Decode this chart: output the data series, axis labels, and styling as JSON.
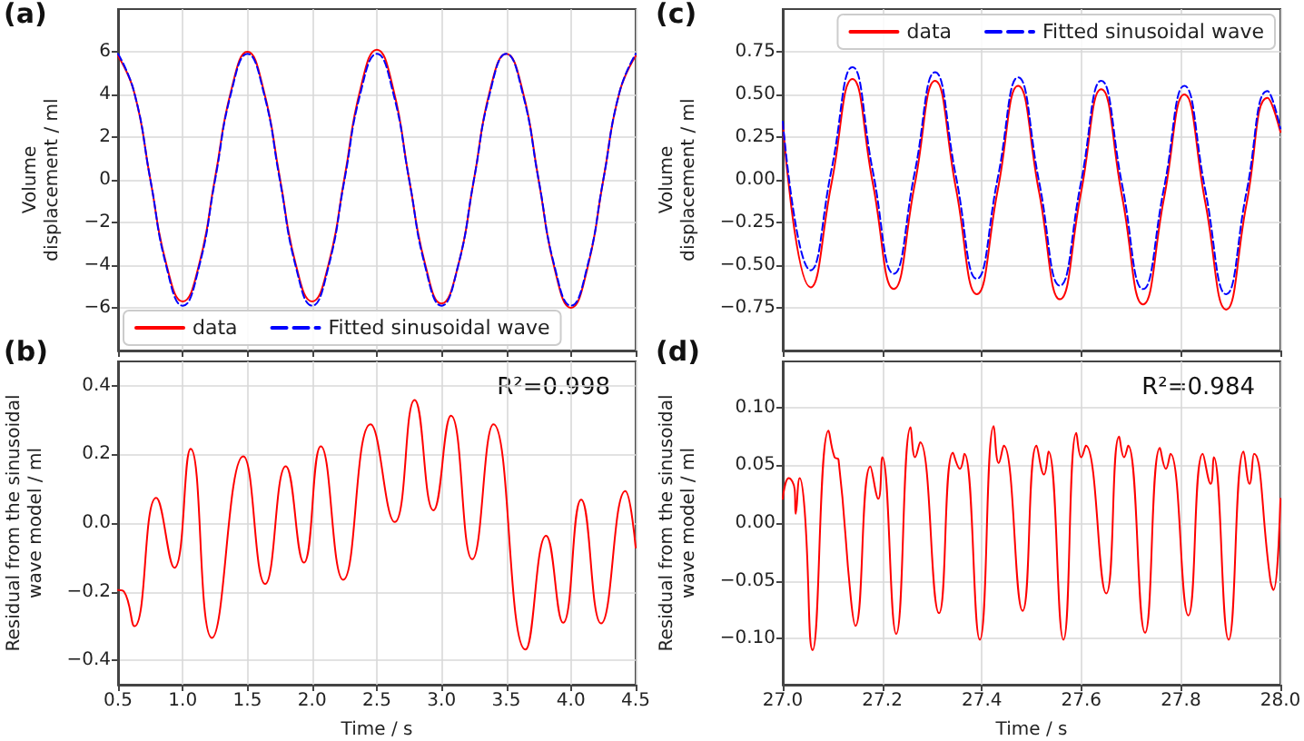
{
  "chart_data": [
    {
      "type": "line",
      "title": "(a)",
      "ylabel": "Volume\ndisplacement / ml",
      "xlim": [
        0.5,
        4.5
      ],
      "ylim": [
        -8,
        8
      ],
      "xticks": [
        0.5,
        1,
        1.5,
        2,
        2.5,
        3,
        3.5,
        4,
        4.5
      ],
      "yticks": [
        {
          "value": -6,
          "label": "−6"
        },
        {
          "value": -4,
          "label": "−4"
        },
        {
          "value": -2,
          "label": "−2"
        },
        0,
        2,
        4,
        6
      ],
      "tick_labels": "y",
      "grid": true,
      "legend": "bottom left",
      "marker": "none",
      "series": [
        {
          "name": "data",
          "color": "#ff0000",
          "line_style": "solid",
          "x": [
            0.5,
            0.625,
            0.75,
            0.875,
            1,
            1.125,
            1.25,
            1.375,
            1.5,
            1.625,
            1.75,
            1.875,
            2,
            2.125,
            2.25,
            2.375,
            2.5,
            2.625,
            2.75,
            2.875,
            3,
            3.125,
            3.25,
            3.375,
            3.5,
            3.625,
            3.75,
            3.875,
            4,
            4.125,
            4.25,
            4.375,
            4.5
          ],
          "values": [
            5.8,
            4.1,
            0,
            -4,
            -5.7,
            -4,
            0.1,
            4.2,
            6,
            4.2,
            0.1,
            -4,
            -5.7,
            -4,
            0.1,
            4.3,
            6.1,
            4.3,
            0,
            -4,
            -5.8,
            -4.1,
            0,
            4.2,
            5.9,
            4.2,
            0,
            -4.2,
            -6,
            -4.2,
            0,
            4.1,
            5.8
          ]
        },
        {
          "name": "Fitted sinusoidal wave",
          "color": "#0000ff",
          "line_style": "dashed",
          "x": [
            0.5,
            0.625,
            0.75,
            0.875,
            1,
            1.125,
            1.25,
            1.375,
            1.5,
            1.625,
            1.75,
            1.875,
            2,
            2.125,
            2.25,
            2.375,
            2.5,
            2.625,
            2.75,
            2.875,
            3,
            3.125,
            3.25,
            3.375,
            3.5,
            3.625,
            3.75,
            3.875,
            4,
            4.125,
            4.25,
            4.375,
            4.5
          ],
          "values": [
            5.9,
            4.1,
            0,
            -4.1,
            -5.9,
            -4.1,
            0,
            4.1,
            5.9,
            4.1,
            0,
            -4.1,
            -5.9,
            -4.1,
            0,
            4.1,
            5.9,
            4.1,
            0,
            -4.1,
            -5.9,
            -4.1,
            0,
            4.1,
            5.9,
            4.1,
            0,
            -4.1,
            -5.9,
            -4.1,
            0,
            4.1,
            5.9
          ]
        }
      ]
    },
    {
      "type": "line",
      "title": "(b)",
      "xlabel": "Time / s",
      "ylabel": "Residual from the sinusoidal\nwave model / ml",
      "xlim": [
        0.5,
        4.5
      ],
      "ylim": [
        -0.47,
        0.47
      ],
      "xticks": [
        0.5,
        {
          "value": 1,
          "label": "1.0"
        },
        1.5,
        {
          "value": 2,
          "label": "2.0"
        },
        2.5,
        {
          "value": 3,
          "label": "3.0"
        },
        3.5,
        {
          "value": 4,
          "label": "4.0"
        },
        4.5
      ],
      "yticks": [
        {
          "value": -0.4,
          "label": "−0.4"
        },
        {
          "value": -0.2,
          "label": "−0.2"
        },
        {
          "value": 0,
          "label": "0.0"
        },
        0.2,
        0.4
      ],
      "grid": true,
      "marker": "none",
      "annotations": [
        "R²=0.998"
      ],
      "series": [
        {
          "color": "#ff0000",
          "line_style": "solid",
          "x": [
            0.5,
            0.547,
            0.626,
            0.795,
            0.935,
            1.061,
            1.225,
            1.468,
            1.637,
            1.796,
            1.936,
            2.067,
            2.24,
            2.451,
            2.638,
            2.792,
            2.937,
            3.073,
            3.237,
            3.401,
            3.649,
            3.808,
            3.939,
            4.079,
            4.233,
            4.42,
            4.5
          ],
          "values": [
            -0.195,
            -0.2,
            -0.3,
            0.073,
            -0.13,
            0.216,
            -0.334,
            0.194,
            -0.177,
            0.165,
            -0.115,
            0.223,
            -0.165,
            0.287,
            0.003,
            0.358,
            0.037,
            0.312,
            -0.105,
            0.287,
            -0.368,
            -0.037,
            -0.29,
            0.068,
            -0.292,
            0.093,
            -0.071
          ]
        }
      ]
    },
    {
      "type": "line",
      "title": "(c)",
      "ylabel": "Volume\ndisplacement / ml",
      "xlim": [
        27,
        28
      ],
      "ylim": [
        -1,
        1
      ],
      "xticks": [
        27,
        27.2,
        27.4,
        27.6,
        27.8,
        28
      ],
      "yticks": [
        {
          "value": -0.75,
          "label": "−0.75"
        },
        {
          "value": -0.5,
          "label": "−0.50"
        },
        {
          "value": -0.25,
          "label": "−0.25"
        },
        {
          "value": 0,
          "label": "0.00"
        },
        0.25,
        {
          "value": 0.5,
          "label": "0.50"
        },
        0.75
      ],
      "tick_labels": "y",
      "grid": true,
      "legend": "top right",
      "marker": "none",
      "series": [
        {
          "name": "data",
          "color": "#ff0000",
          "line_style": "solid",
          "x": [
            27,
            27.056,
            27.098,
            27.14,
            27.181,
            27.223,
            27.265,
            27.306,
            27.348,
            27.39,
            27.432,
            27.473,
            27.515,
            27.557,
            27.599,
            27.64,
            27.682,
            27.724,
            27.766,
            27.807,
            27.849,
            27.891,
            27.932,
            27.974,
            28
          ],
          "values": [
            0.33,
            -0.63,
            -0.02,
            0.59,
            -0.02,
            -0.64,
            -0.03,
            0.58,
            -0.05,
            -0.67,
            -0.06,
            0.55,
            -0.07,
            -0.7,
            -0.08,
            0.53,
            -0.1,
            -0.73,
            -0.11,
            0.5,
            -0.13,
            -0.76,
            -0.14,
            0.48,
            0.28
          ]
        },
        {
          "name": "Fitted sinusoidal wave",
          "color": "#0000ff",
          "line_style": "dashed",
          "x": [
            27,
            27.056,
            27.098,
            27.14,
            27.181,
            27.223,
            27.265,
            27.306,
            27.348,
            27.39,
            27.432,
            27.473,
            27.515,
            27.557,
            27.599,
            27.64,
            27.682,
            27.724,
            27.766,
            27.807,
            27.849,
            27.891,
            27.932,
            27.974,
            28
          ],
          "values": [
            0.34,
            -0.53,
            0.06,
            0.66,
            0.05,
            -0.55,
            0.04,
            0.63,
            0.02,
            -0.58,
            0.01,
            0.6,
            -0.01,
            -0.62,
            -0.02,
            0.58,
            -0.03,
            -0.64,
            -0.05,
            0.55,
            -0.06,
            -0.67,
            -0.07,
            0.52,
            0.3
          ]
        }
      ]
    },
    {
      "type": "line",
      "title": "(d)",
      "xlabel": "Time / s",
      "ylabel": "Residual from the sinusoidal\nwave model / ml",
      "xlim": [
        27,
        28
      ],
      "ylim": [
        -0.14,
        0.14
      ],
      "xticks": [
        {
          "value": 27,
          "label": "27.0"
        },
        27.2,
        27.4,
        27.6,
        27.8,
        {
          "value": 28,
          "label": "28.0"
        }
      ],
      "yticks": [
        {
          "value": -0.1,
          "label": "−0.10"
        },
        {
          "value": -0.05,
          "label": "−0.05"
        },
        {
          "value": 0,
          "label": "0.00"
        },
        0.05,
        {
          "value": 0.1,
          "label": "0.10"
        }
      ],
      "grid": true,
      "marker": "none",
      "annotations": [
        "R²=0.984"
      ],
      "series": [
        {
          "color": "#ff0000",
          "line_style": "solid",
          "x": [
            27,
            27.012,
            27.024,
            27.026,
            27.034,
            27.044,
            27.06,
            27.092,
            27.104,
            27.112,
            27.137,
            27.146,
            27.176,
            27.192,
            27.2,
            27.228,
            27.257,
            27.266,
            27.276,
            27.314,
            27.342,
            27.356,
            27.365,
            27.396,
            27.424,
            27.434,
            27.444,
            27.482,
            27.51,
            27.525,
            27.534,
            27.564,
            27.59,
            27.6,
            27.609,
            27.65,
            27.676,
            27.686,
            27.694,
            27.728,
            27.758,
            27.77,
            27.779,
            27.815,
            27.844,
            27.86,
            27.866,
            27.896,
            27.926,
            27.938,
            27.947,
            27.98,
            27.986,
            28
          ],
          "values": [
            0.021,
            0.039,
            0.029,
            0.008,
            0.039,
            0.011,
            -0.11,
            0.08,
            0.057,
            0.055,
            -0.066,
            -0.089,
            0.049,
            0.021,
            0.057,
            -0.096,
            0.083,
            0.057,
            0.07,
            -0.078,
            0.061,
            0.047,
            0.06,
            -0.101,
            0.084,
            0.052,
            0.067,
            -0.076,
            0.067,
            0.042,
            0.062,
            -0.101,
            0.078,
            0.057,
            0.067,
            -0.061,
            0.075,
            0.057,
            0.067,
            -0.095,
            0.065,
            0.047,
            0.06,
            -0.08,
            0.06,
            0.034,
            0.057,
            -0.101,
            0.062,
            0.034,
            0.06,
            -0.05,
            -0.058,
            0.021
          ]
        }
      ]
    }
  ]
}
